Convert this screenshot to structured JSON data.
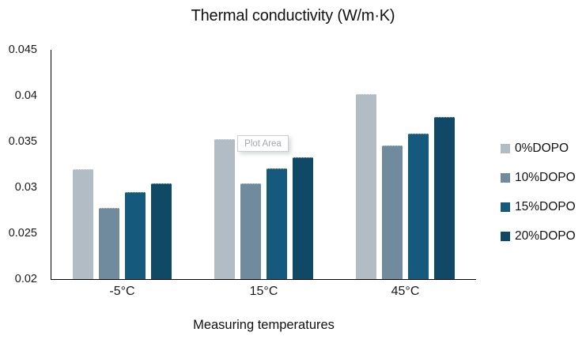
{
  "tooltip": {
    "label": "Plot Area"
  },
  "chart_data": {
    "type": "bar",
    "title": "Thermal conductivity (W/m·K)",
    "categories": [
      "-5°C",
      "15°C",
      "45°C"
    ],
    "series": [
      {
        "name": "0%DOPO",
        "color": "#b2bcc4",
        "values": [
          0.032,
          0.0353,
          0.0402
        ]
      },
      {
        "name": "10%DOPO",
        "color": "#6f8b9d",
        "values": [
          0.0278,
          0.0304,
          0.0346
        ]
      },
      {
        "name": "15%DOPO",
        "color": "#15597c",
        "values": [
          0.0295,
          0.0321,
          0.0359
        ]
      },
      {
        "name": "20%DOPO",
        "color": "#104966",
        "values": [
          0.0304,
          0.0333,
          0.0377
        ]
      }
    ],
    "xlabel": "Measuring temperatures",
    "ylabel": "",
    "ylim": [
      0.02,
      0.045
    ],
    "yticks": [
      0.045,
      0.04,
      0.035,
      0.03,
      0.025,
      0.02
    ],
    "ytick_labels": [
      "0.045",
      "0.04",
      "0.035",
      "0.03",
      "0.025",
      "0.02"
    ],
    "grid": false,
    "legend_position": "right"
  }
}
